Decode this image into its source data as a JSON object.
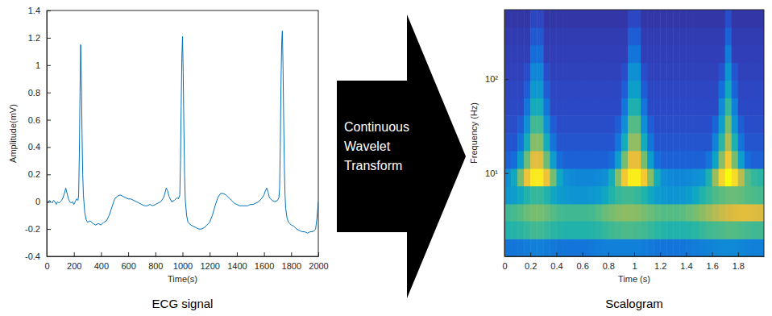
{
  "chart_data": [
    {
      "type": "line",
      "title": "ECG signal",
      "xlabel": "Time(s)",
      "ylabel": "Amplitude(mV)",
      "color": "#0072bd",
      "x": [
        0,
        10,
        20,
        30,
        40,
        50,
        60,
        70,
        80,
        90,
        100,
        110,
        120,
        130,
        140,
        150,
        160,
        170,
        180,
        190,
        200,
        210,
        220,
        230,
        235,
        240,
        245,
        250,
        255,
        260,
        265,
        270,
        280,
        290,
        300,
        320,
        340,
        360,
        380,
        400,
        420,
        440,
        460,
        480,
        500,
        520,
        540,
        560,
        580,
        600,
        620,
        640,
        660,
        680,
        700,
        720,
        740,
        760,
        780,
        800,
        820,
        840,
        860,
        870,
        880,
        890,
        900,
        910,
        920,
        940,
        960,
        970,
        980,
        985,
        990,
        995,
        1000,
        1005,
        1010,
        1015,
        1020,
        1030,
        1040,
        1060,
        1080,
        1100,
        1120,
        1140,
        1160,
        1180,
        1200,
        1220,
        1240,
        1260,
        1280,
        1300,
        1320,
        1340,
        1360,
        1380,
        1400,
        1420,
        1440,
        1460,
        1480,
        1500,
        1520,
        1540,
        1560,
        1580,
        1600,
        1610,
        1620,
        1630,
        1640,
        1660,
        1680,
        1700,
        1710,
        1715,
        1720,
        1725,
        1730,
        1735,
        1740,
        1745,
        1750,
        1755,
        1760,
        1770,
        1780,
        1800,
        1820,
        1840,
        1860,
        1880,
        1900,
        1920,
        1940,
        1960,
        1980,
        1990,
        2000
      ],
      "values": [
        0,
        -0.01,
        0.01,
        0,
        -0.01,
        0.01,
        0,
        -0.02,
        0,
        -0.01,
        0,
        0.01,
        0.03,
        0.06,
        0.1,
        0.06,
        0.02,
        0,
        -0.01,
        0,
        -0.02,
        0,
        0.02,
        0.01,
        0.05,
        0.35,
        0.8,
        1.15,
        0.9,
        0.5,
        0.2,
        0.05,
        -0.08,
        -0.13,
        -0.15,
        -0.14,
        -0.16,
        -0.17,
        -0.16,
        -0.17,
        -0.15,
        -0.14,
        -0.1,
        -0.04,
        0.02,
        0.04,
        0.05,
        0.04,
        0.03,
        0.02,
        0.02,
        0.01,
        0,
        -0.01,
        -0.02,
        -0.03,
        -0.03,
        -0.02,
        -0.03,
        -0.02,
        -0.01,
        0,
        0.03,
        0.06,
        0.1,
        0.08,
        0.04,
        0.02,
        0,
        0.01,
        0.03,
        0.02,
        0.05,
        0.3,
        0.7,
        1.05,
        1.21,
        0.95,
        0.55,
        0.2,
        0.02,
        -0.1,
        -0.15,
        -0.17,
        -0.18,
        -0.19,
        -0.2,
        -0.2,
        -0.19,
        -0.17,
        -0.15,
        -0.1,
        -0.03,
        0.03,
        0.06,
        0.06,
        0.05,
        0.03,
        0.01,
        -0.01,
        -0.02,
        -0.03,
        -0.03,
        -0.03,
        -0.03,
        -0.02,
        -0.02,
        -0.01,
        0,
        0.02,
        0.05,
        0.08,
        0.1,
        0.07,
        0.03,
        0.01,
        0,
        0.01,
        0.03,
        0.1,
        0.4,
        0.85,
        1.15,
        1.25,
        1.0,
        0.6,
        0.25,
        0.05,
        -0.05,
        -0.12,
        -0.15,
        -0.17,
        -0.18,
        -0.2,
        -0.21,
        -0.22,
        -0.22,
        -0.23,
        -0.22,
        -0.22,
        -0.2,
        -0.12,
        0
      ],
      "xlim": [
        0,
        2000
      ],
      "xticks": [
        0,
        200,
        400,
        600,
        800,
        1000,
        1200,
        1400,
        1600,
        1800,
        2000
      ],
      "ylim": [
        -0.4,
        1.4
      ],
      "yticks": [
        -0.4,
        -0.2,
        0,
        0.2,
        0.4,
        0.6,
        0.8,
        1,
        1.2,
        1.4
      ]
    },
    {
      "type": "heatmap",
      "title": "Scalogram",
      "xlabel": "Time (s)",
      "ylabel": "Frequency (Hz)",
      "log": "y",
      "x": [
        0,
        0.05,
        0.1,
        0.15,
        0.2,
        0.25,
        0.3,
        0.35,
        0.4,
        0.45,
        0.5,
        0.55,
        0.6,
        0.65,
        0.7,
        0.75,
        0.8,
        0.85,
        0.9,
        0.95,
        1,
        1.05,
        1.1,
        1.15,
        1.2,
        1.25,
        1.3,
        1.35,
        1.4,
        1.45,
        1.5,
        1.55,
        1.6,
        1.65,
        1.7,
        1.75,
        1.8,
        1.85,
        1.9,
        1.95,
        2
      ],
      "y": [
        1.3,
        2,
        3.1,
        4.7,
        7.3,
        11.2,
        17.3,
        26.6,
        41,
        63,
        97,
        150,
        231,
        356,
        548
      ],
      "cells": [
        [
          0.22,
          0.22,
          0.23,
          0.24,
          0.25,
          0.25,
          0.24,
          0.23,
          0.22,
          0.22,
          0.22,
          0.22,
          0.22,
          0.23,
          0.24,
          0.25,
          0.25,
          0.25,
          0.25,
          0.25,
          0.25,
          0.24,
          0.23,
          0.22,
          0.22,
          0.22,
          0.22,
          0.22,
          0.23,
          0.24,
          0.25,
          0.26,
          0.27,
          0.28,
          0.28,
          0.28,
          0.27,
          0.26,
          0.25,
          0.25
        ],
        [
          0.46,
          0.47,
          0.48,
          0.5,
          0.52,
          0.52,
          0.5,
          0.48,
          0.47,
          0.46,
          0.46,
          0.46,
          0.46,
          0.47,
          0.48,
          0.5,
          0.52,
          0.53,
          0.54,
          0.54,
          0.53,
          0.52,
          0.5,
          0.48,
          0.47,
          0.46,
          0.46,
          0.46,
          0.47,
          0.48,
          0.5,
          0.52,
          0.53,
          0.54,
          0.55,
          0.55,
          0.54,
          0.53,
          0.52,
          0.52
        ],
        [
          0.52,
          0.53,
          0.55,
          0.58,
          0.6,
          0.6,
          0.58,
          0.55,
          0.53,
          0.52,
          0.52,
          0.52,
          0.52,
          0.53,
          0.55,
          0.58,
          0.6,
          0.62,
          0.63,
          0.63,
          0.62,
          0.6,
          0.58,
          0.56,
          0.55,
          0.55,
          0.55,
          0.56,
          0.58,
          0.6,
          0.63,
          0.66,
          0.69,
          0.72,
          0.75,
          0.77,
          0.78,
          0.78,
          0.77,
          0.76
        ],
        [
          0.33,
          0.35,
          0.4,
          0.46,
          0.5,
          0.5,
          0.46,
          0.4,
          0.35,
          0.33,
          0.32,
          0.32,
          0.32,
          0.33,
          0.35,
          0.4,
          0.46,
          0.5,
          0.52,
          0.52,
          0.5,
          0.46,
          0.4,
          0.35,
          0.33,
          0.32,
          0.32,
          0.33,
          0.35,
          0.4,
          0.46,
          0.5,
          0.54,
          0.56,
          0.58,
          0.58,
          0.57,
          0.55,
          0.54,
          0.53
        ],
        [
          0.3,
          0.4,
          0.6,
          0.82,
          0.95,
          0.95,
          0.82,
          0.6,
          0.4,
          0.3,
          0.28,
          0.27,
          0.27,
          0.27,
          0.28,
          0.3,
          0.42,
          0.62,
          0.84,
          0.96,
          0.96,
          0.84,
          0.62,
          0.42,
          0.3,
          0.28,
          0.27,
          0.27,
          0.28,
          0.3,
          0.32,
          0.45,
          0.65,
          0.88,
          1.0,
          0.9,
          0.7,
          0.55,
          0.5,
          0.48
        ],
        [
          0.17,
          0.2,
          0.35,
          0.58,
          0.78,
          0.78,
          0.58,
          0.35,
          0.2,
          0.17,
          0.17,
          0.17,
          0.17,
          0.17,
          0.17,
          0.17,
          0.2,
          0.35,
          0.6,
          0.8,
          0.8,
          0.6,
          0.35,
          0.2,
          0.17,
          0.17,
          0.17,
          0.17,
          0.17,
          0.17,
          0.17,
          0.22,
          0.38,
          0.62,
          0.84,
          0.6,
          0.36,
          0.2,
          0.17,
          0.17
        ],
        [
          0.14,
          0.14,
          0.22,
          0.42,
          0.62,
          0.62,
          0.42,
          0.22,
          0.14,
          0.14,
          0.14,
          0.14,
          0.14,
          0.14,
          0.14,
          0.14,
          0.14,
          0.22,
          0.42,
          0.64,
          0.64,
          0.42,
          0.22,
          0.14,
          0.14,
          0.14,
          0.14,
          0.14,
          0.14,
          0.14,
          0.14,
          0.14,
          0.26,
          0.48,
          0.68,
          0.45,
          0.22,
          0.14,
          0.14,
          0.14
        ],
        [
          0.12,
          0.12,
          0.16,
          0.3,
          0.52,
          0.52,
          0.3,
          0.16,
          0.12,
          0.12,
          0.12,
          0.12,
          0.12,
          0.12,
          0.12,
          0.12,
          0.12,
          0.16,
          0.3,
          0.55,
          0.55,
          0.3,
          0.16,
          0.12,
          0.12,
          0.12,
          0.12,
          0.12,
          0.12,
          0.12,
          0.12,
          0.12,
          0.18,
          0.36,
          0.6,
          0.32,
          0.16,
          0.12,
          0.12,
          0.12
        ],
        [
          0.11,
          0.11,
          0.11,
          0.22,
          0.42,
          0.42,
          0.22,
          0.11,
          0.11,
          0.11,
          0.11,
          0.11,
          0.11,
          0.11,
          0.11,
          0.11,
          0.11,
          0.11,
          0.22,
          0.45,
          0.45,
          0.22,
          0.11,
          0.11,
          0.11,
          0.11,
          0.11,
          0.11,
          0.11,
          0.11,
          0.11,
          0.11,
          0.11,
          0.28,
          0.5,
          0.25,
          0.11,
          0.11,
          0.11,
          0.11
        ],
        [
          0.1,
          0.1,
          0.1,
          0.16,
          0.33,
          0.33,
          0.16,
          0.1,
          0.1,
          0.1,
          0.1,
          0.1,
          0.1,
          0.1,
          0.1,
          0.1,
          0.1,
          0.1,
          0.16,
          0.36,
          0.36,
          0.16,
          0.1,
          0.1,
          0.1,
          0.1,
          0.1,
          0.1,
          0.1,
          0.1,
          0.1,
          0.1,
          0.1,
          0.2,
          0.4,
          0.18,
          0.1,
          0.1,
          0.1,
          0.1
        ],
        [
          0.09,
          0.09,
          0.09,
          0.12,
          0.27,
          0.27,
          0.12,
          0.09,
          0.09,
          0.09,
          0.09,
          0.09,
          0.09,
          0.09,
          0.09,
          0.09,
          0.09,
          0.09,
          0.12,
          0.3,
          0.3,
          0.12,
          0.09,
          0.09,
          0.09,
          0.09,
          0.09,
          0.09,
          0.09,
          0.09,
          0.09,
          0.09,
          0.09,
          0.13,
          0.32,
          0.14,
          0.09,
          0.09,
          0.09,
          0.09
        ],
        [
          0.08,
          0.08,
          0.08,
          0.08,
          0.2,
          0.2,
          0.08,
          0.08,
          0.08,
          0.08,
          0.08,
          0.08,
          0.08,
          0.08,
          0.08,
          0.08,
          0.08,
          0.08,
          0.08,
          0.22,
          0.22,
          0.08,
          0.08,
          0.08,
          0.08,
          0.08,
          0.08,
          0.08,
          0.08,
          0.08,
          0.08,
          0.08,
          0.08,
          0.08,
          0.24,
          0.08,
          0.08,
          0.08,
          0.08,
          0.08
        ],
        [
          0.07,
          0.07,
          0.07,
          0.07,
          0.15,
          0.15,
          0.07,
          0.07,
          0.07,
          0.07,
          0.07,
          0.07,
          0.07,
          0.07,
          0.07,
          0.07,
          0.07,
          0.07,
          0.07,
          0.16,
          0.16,
          0.07,
          0.07,
          0.07,
          0.07,
          0.07,
          0.07,
          0.07,
          0.07,
          0.07,
          0.07,
          0.07,
          0.07,
          0.07,
          0.17,
          0.07,
          0.07,
          0.07,
          0.07,
          0.07
        ],
        [
          0.05,
          0.05,
          0.05,
          0.05,
          0.1,
          0.1,
          0.05,
          0.05,
          0.05,
          0.05,
          0.05,
          0.05,
          0.05,
          0.05,
          0.05,
          0.05,
          0.05,
          0.05,
          0.05,
          0.1,
          0.1,
          0.05,
          0.05,
          0.05,
          0.05,
          0.05,
          0.05,
          0.05,
          0.05,
          0.05,
          0.05,
          0.05,
          0.05,
          0.05,
          0.12,
          0.05,
          0.05,
          0.05,
          0.05,
          0.05
        ]
      ],
      "xlim": [
        0,
        2
      ],
      "xticks": [
        0,
        0.2,
        0.4,
        0.6,
        0.8,
        1,
        1.2,
        1.4,
        1.6,
        1.8
      ],
      "ylim": [
        1.3,
        548
      ],
      "yticks": [
        {
          "value": 10,
          "label": "10¹"
        },
        {
          "value": 100,
          "label": "10²"
        }
      ]
    }
  ],
  "arrow": {
    "label": "Continuous Wavelet Transform"
  }
}
